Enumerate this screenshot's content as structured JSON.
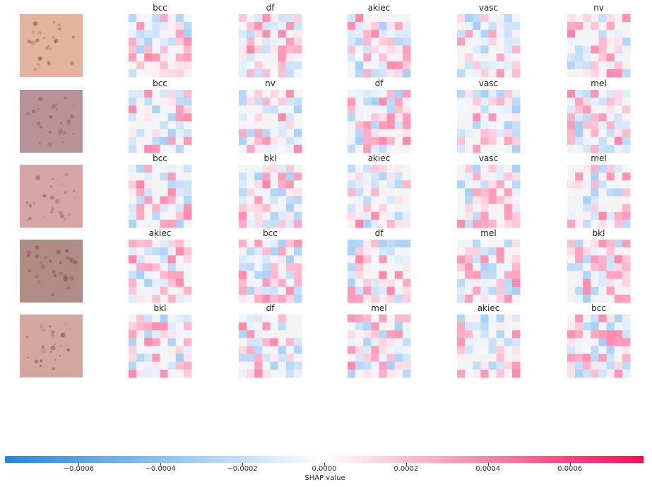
{
  "chart_data": {
    "type": "heatmap",
    "title": "",
    "rows": [
      {
        "sample": 1,
        "panels": [
          "bcc",
          "df",
          "akiec",
          "vasc",
          "nv"
        ]
      },
      {
        "sample": 2,
        "panels": [
          "bcc",
          "nv",
          "df",
          "vasc",
          "mel"
        ]
      },
      {
        "sample": 3,
        "panels": [
          "bcc",
          "bkl",
          "akiec",
          "vasc",
          "mel"
        ]
      },
      {
        "sample": 4,
        "panels": [
          "akiec",
          "bcc",
          "df",
          "mel",
          "bkl"
        ]
      },
      {
        "sample": 5,
        "panels": [
          "bkl",
          "df",
          "mel",
          "akiec",
          "bcc"
        ]
      }
    ],
    "colorbar": {
      "label": "SHAP value",
      "range": [
        -0.00078,
        0.00078
      ],
      "ticks": [
        -0.0006,
        -0.0004,
        -0.0002,
        0.0,
        0.0002,
        0.0004,
        0.0006
      ],
      "tick_labels": [
        "−0.0006",
        "−0.0004",
        "−0.0002",
        "0.0000",
        "0.0002",
        "0.0004",
        "0.0006"
      ],
      "negative_color": "#1e88e5",
      "positive_color": "#ff0d57"
    },
    "grid": false
  }
}
